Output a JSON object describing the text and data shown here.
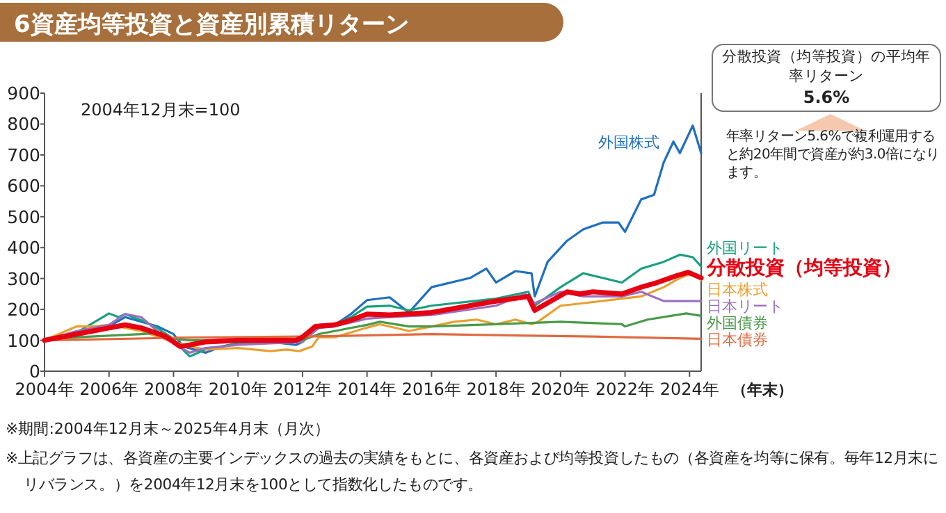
{
  "chart_data": {
    "type": "line",
    "title": "6資産均等投資と資産別累積リターン",
    "xlabel": "（年末）",
    "xlim": [
      2004,
      2024.36
    ],
    "xticks": [
      {
        "value": 2004,
        "label": "2004年"
      },
      {
        "value": 2006,
        "label": "2006年"
      },
      {
        "value": 2008,
        "label": "2008年"
      },
      {
        "value": 2010,
        "label": "2010年"
      },
      {
        "value": 2012,
        "label": "2012年"
      },
      {
        "value": 2014,
        "label": "2014年"
      },
      {
        "value": 2016,
        "label": "2016年"
      },
      {
        "value": 2018,
        "label": "2018年"
      },
      {
        "value": 2020,
        "label": "2020年"
      },
      {
        "value": 2022,
        "label": "2022年"
      },
      {
        "value": 2024,
        "label": "2024年"
      }
    ],
    "ylim": [
      0,
      900
    ],
    "yticks": [
      0,
      100,
      200,
      300,
      400,
      500,
      600,
      700,
      800,
      900
    ],
    "series": [
      {
        "name": "外国株式",
        "color": "#1f6fc0",
        "x": [
          2004,
          2005,
          2006,
          2006.5,
          2007.5,
          2008,
          2008.3,
          2009,
          2009.5,
          2010,
          2011,
          2011.8,
          2012,
          2012.5,
          2013,
          2013.5,
          2014,
          2014.7,
          2015.3,
          2016,
          2017.2,
          2017.7,
          2018,
          2018.6,
          2019.1,
          2019.2,
          2019.6,
          2020.2,
          2020.7,
          2021.3,
          2021.8,
          2022,
          2022.5,
          2022.9,
          2023.2,
          2023.5,
          2023.7,
          2024.1,
          2024.36
        ],
        "values": [
          100,
          118,
          145,
          175,
          145,
          120,
          80,
          60,
          80,
          90,
          95,
          85,
          95,
          150,
          150,
          185,
          230,
          239,
          190,
          272,
          302,
          332,
          287,
          324,
          317,
          242,
          354,
          422,
          459,
          481,
          481,
          451,
          556,
          571,
          676,
          743,
          706,
          795,
          706
        ]
      },
      {
        "name": "外国リート",
        "color": "#1aa080",
        "x": [
          2004,
          2005,
          2006,
          2006.3,
          2006.5,
          2007,
          2007.5,
          2008,
          2008.5,
          2009,
          2010,
          2011,
          2012,
          2012.5,
          2013,
          2013.5,
          2014,
          2014.7,
          2015.3,
          2016,
          2018,
          2019,
          2019.2,
          2020,
          2020.7,
          2021.3,
          2021.9,
          2022.5,
          2023.2,
          2023.7,
          2024.1,
          2024.36
        ],
        "values": [
          100,
          125,
          187,
          175,
          185,
          165,
          140,
          100,
          48,
          70,
          90,
          95,
          100,
          140,
          150,
          175,
          209,
          212,
          197,
          212,
          235,
          257,
          212,
          272,
          317,
          302,
          287,
          332,
          354,
          377,
          369,
          339
        ]
      },
      {
        "name": "分散投資（均等投資）",
        "color": "#e60012",
        "x": [
          2004,
          2005,
          2006,
          2006.5,
          2007,
          2007.7,
          2008,
          2008.2,
          2008.5,
          2009,
          2010,
          2011,
          2011.8,
          2012,
          2012.4,
          2013,
          2013.5,
          2014,
          2014.7,
          2016,
          2018,
          2019,
          2019.2,
          2019.7,
          2020.2,
          2020.6,
          2021,
          2021.9,
          2022.5,
          2023,
          2023.6,
          2023.96,
          2024.36
        ],
        "values": [
          100,
          120,
          140,
          150,
          140,
          115,
          95,
          80,
          85,
          95,
          100,
          100,
          100,
          110,
          145,
          150,
          165,
          185,
          182,
          190,
          227,
          242,
          197,
          227,
          257,
          250,
          257,
          250,
          272,
          287,
          309,
          320,
          302
        ]
      },
      {
        "name": "日本株式",
        "color": "#e8a030",
        "x": [
          2004,
          2005,
          2005.5,
          2006,
          2006.5,
          2007,
          2008,
          2008.5,
          2009,
          2010,
          2010.5,
          2011,
          2011.5,
          2011.9,
          2012.3,
          2012.5,
          2013,
          2014,
          2014.4,
          2015.3,
          2016,
          2016.7,
          2017.4,
          2018,
          2018.6,
          2019.1,
          2019.3,
          2020,
          2020.7,
          2021.9,
          2022.5,
          2023.2,
          2023.7,
          2024.1,
          2024.36
        ],
        "values": [
          100,
          145,
          145,
          150,
          140,
          130,
          95,
          80,
          70,
          75,
          70,
          65,
          70,
          65,
          80,
          110,
          110,
          141,
          152,
          130,
          145,
          160,
          167,
          152,
          167,
          152,
          160,
          212,
          220,
          235,
          242,
          272,
          302,
          317,
          295
        ]
      },
      {
        "name": "日本リート",
        "color": "#9b6fc0",
        "x": [
          2004,
          2005,
          2006,
          2006.5,
          2007,
          2007.5,
          2008,
          2008.5,
          2009,
          2010,
          2011,
          2012,
          2012.5,
          2013,
          2014,
          2014.7,
          2016,
          2018,
          2018.9,
          2019.2,
          2020,
          2020.7,
          2021.9,
          2022.5,
          2023.2,
          2023.9,
          2024.36
        ],
        "values": [
          100,
          130,
          150,
          185,
          175,
          130,
          90,
          60,
          75,
          85,
          90,
          95,
          140,
          145,
          170,
          175,
          182,
          212,
          250,
          220,
          257,
          242,
          242,
          257,
          227,
          227,
          227
        ]
      },
      {
        "name": "外国債券",
        "color": "#4a9a4a",
        "x": [
          2004,
          2005,
          2006,
          2007,
          2007.7,
          2008,
          2008.5,
          2009,
          2010,
          2011,
          2012,
          2012.5,
          2013,
          2014,
          2014.4,
          2015.3,
          2016,
          2018,
          2020,
          2021.9,
          2022,
          2022.7,
          2023.9,
          2024.36
        ],
        "values": [
          100,
          110,
          115,
          120,
          125,
          105,
          100,
          100,
          100,
          95,
          100,
          120,
          130,
          150,
          160,
          145,
          145,
          152,
          160,
          152,
          145,
          167,
          187,
          179
        ]
      },
      {
        "name": "日本債券",
        "color": "#e06a40",
        "x": [
          2004,
          2008,
          2012,
          2016,
          2019,
          2021,
          2024.36
        ],
        "values": [
          100,
          108,
          112,
          120,
          115,
          112,
          105
        ]
      }
    ],
    "annotations": [
      "2004年12月末=100",
      "分散投資（均等投資）の平均年率リターン",
      "5.6%",
      "年率リターン5.6%で複利運用すると約20年間で資産が約3.0倍になります。",
      "※期間:2004年12月末～2025年4月末（月次）",
      "※上記グラフは、各資産の主要インデックスの過去の実績をもとに、各資産および均等投資したもの（各資産を均等に保有。毎年12月末にリバランス。）を2004年12月末を100として指数化したものです。"
    ]
  }
}
